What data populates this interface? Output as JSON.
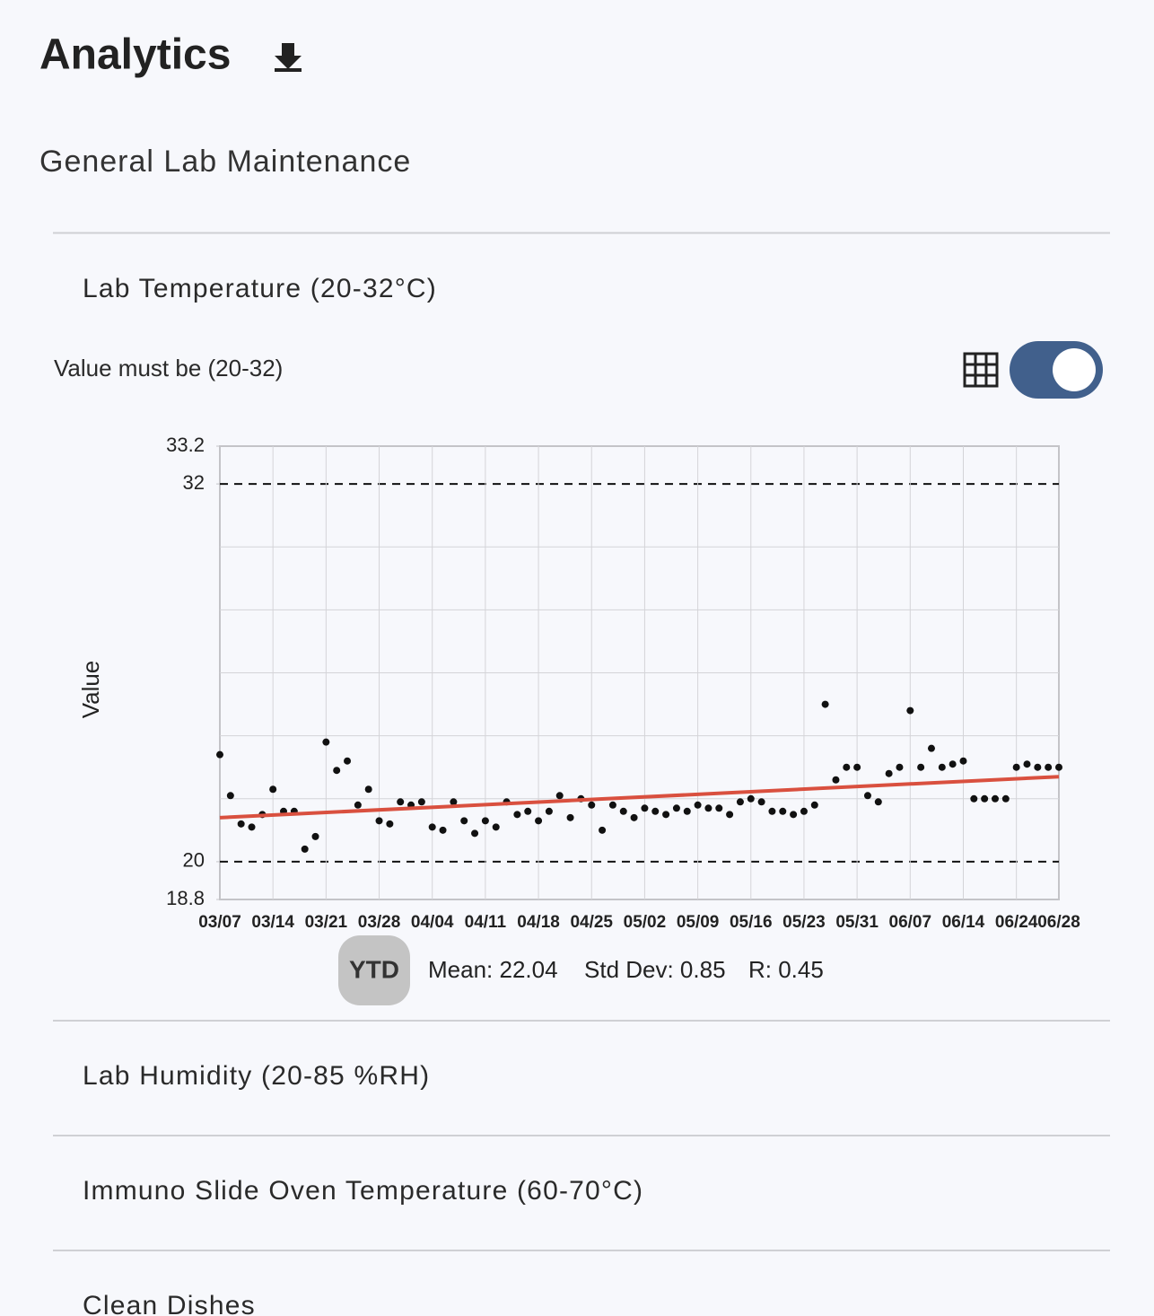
{
  "header": {
    "title": "Analytics"
  },
  "section": {
    "title": "General Lab Maintenance"
  },
  "panels": [
    {
      "title": "Lab Temperature (20-32°C)",
      "subtitle": "Value must be (20-32)"
    },
    {
      "title": "Lab Humidity (20-85 %RH)"
    },
    {
      "title": "Immuno Slide Oven Temperature (60-70°C)"
    },
    {
      "title": "Clean Dishes"
    }
  ],
  "stats": {
    "period": "YTD",
    "mean": "Mean: 22.04",
    "std_dev": "Std Dev: 0.85",
    "r": "R: 0.45"
  },
  "chart_data": {
    "type": "scatter",
    "y_label": "Value",
    "categories": [
      "03/07",
      null,
      null,
      null,
      null,
      "03/14",
      null,
      null,
      null,
      null,
      "03/21",
      null,
      null,
      null,
      null,
      "03/28",
      null,
      null,
      null,
      null,
      "04/04",
      null,
      null,
      null,
      null,
      "04/11",
      null,
      null,
      null,
      null,
      "04/18",
      null,
      null,
      null,
      null,
      "04/25",
      null,
      null,
      null,
      null,
      "05/02",
      null,
      null,
      null,
      null,
      "05/09",
      null,
      null,
      null,
      null,
      "05/16",
      null,
      null,
      null,
      null,
      "05/23",
      null,
      null,
      null,
      null,
      "05/31",
      null,
      null,
      null,
      null,
      "06/07",
      null,
      null,
      null,
      null,
      "06/14",
      null,
      null,
      null,
      null,
      "06/24",
      null,
      null,
      null,
      "06/28"
    ],
    "values": [
      23.4,
      22.1,
      21.2,
      21.1,
      21.5,
      22.3,
      21.6,
      21.6,
      20.4,
      20.8,
      23.8,
      22.9,
      23.2,
      21.8,
      22.3,
      21.3,
      21.2,
      21.9,
      21.8,
      21.9,
      21.1,
      21.0,
      21.9,
      21.3,
      20.9,
      21.3,
      21.1,
      21.9,
      21.5,
      21.6,
      21.3,
      21.6,
      22.1,
      21.4,
      22.0,
      21.8,
      21.0,
      21.8,
      21.6,
      21.4,
      21.7,
      21.6,
      21.5,
      21.7,
      21.6,
      21.8,
      21.7,
      21.7,
      21.5,
      21.9,
      22.0,
      21.9,
      21.6,
      21.6,
      21.5,
      21.6,
      21.8,
      25.0,
      22.6,
      23.0,
      23.0,
      22.1,
      21.9,
      22.8,
      23.0,
      24.8,
      23.0,
      23.6,
      23.0,
      23.1,
      23.2,
      22.0,
      22.0,
      22.0,
      22.0,
      23.0,
      23.1,
      23.0,
      23.0,
      23.0
    ],
    "color": "#111111",
    "trend": {
      "values": [
        21.4,
        22.7
      ],
      "color": "#d9503f"
    },
    "ylim": [
      18.8,
      33.2
    ],
    "yticks": [
      18.8,
      20,
      32,
      33.2
    ],
    "ygrid": [
      22,
      24,
      26,
      28,
      30
    ],
    "limits": [
      20,
      32
    ],
    "grid": true
  }
}
